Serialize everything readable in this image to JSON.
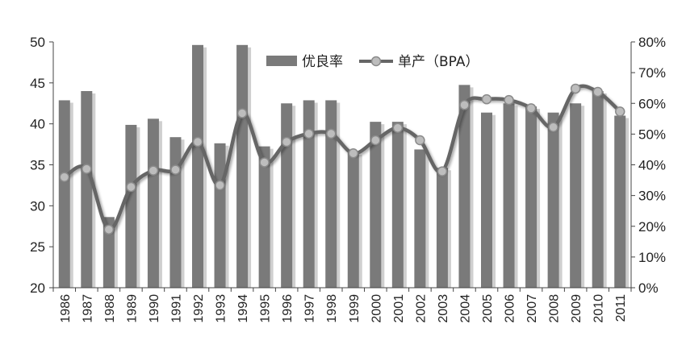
{
  "chart_data": {
    "type": "bar+line",
    "categories": [
      "1986",
      "1987",
      "1988",
      "1989",
      "1990",
      "1991",
      "1992",
      "1993",
      "1994",
      "1995",
      "1996",
      "1997",
      "1998",
      "1999",
      "2000",
      "2001",
      "2002",
      "2003",
      "2004",
      "2005",
      "2006",
      "2007",
      "2008",
      "2009",
      "2010",
      "2011"
    ],
    "series": [
      {
        "name": "优良率",
        "type": "bar",
        "axis": "right",
        "values": [
          61,
          64,
          23,
          53,
          55,
          49,
          79,
          47,
          79,
          46,
          60,
          61,
          61,
          44,
          54,
          54,
          45,
          39,
          66,
          57,
          60,
          59,
          57,
          60,
          64,
          56
        ]
      },
      {
        "name": "单产（BPA）",
        "type": "line",
        "axis": "left",
        "values": [
          33.5,
          34.5,
          27.1,
          32.3,
          34.3,
          34.4,
          37.8,
          32.5,
          41.3,
          35.3,
          37.8,
          38.8,
          38.8,
          36.4,
          38.0,
          39.5,
          38.0,
          34.2,
          42.3,
          43.0,
          42.9,
          41.9,
          39.6,
          44.3,
          43.9,
          41.5
        ]
      }
    ],
    "left_axis": {
      "ylim": [
        20,
        50
      ],
      "ticks": [
        "20",
        "25",
        "30",
        "35",
        "40",
        "45",
        "50"
      ]
    },
    "right_axis": {
      "ylim": [
        0,
        80
      ],
      "ticks": [
        "0%",
        "10%",
        "20%",
        "30%",
        "40%",
        "50%",
        "60%",
        "70%",
        "80%"
      ]
    },
    "legend_position": "top-center",
    "grid": false,
    "colors": {
      "bar": "#7a7a7a",
      "bar_shadow": "#cfcfcf",
      "line": "#666666",
      "marker_fill": "#bdbdbd",
      "marker_stroke": "#8a8a8a",
      "axis": "#444444"
    }
  }
}
